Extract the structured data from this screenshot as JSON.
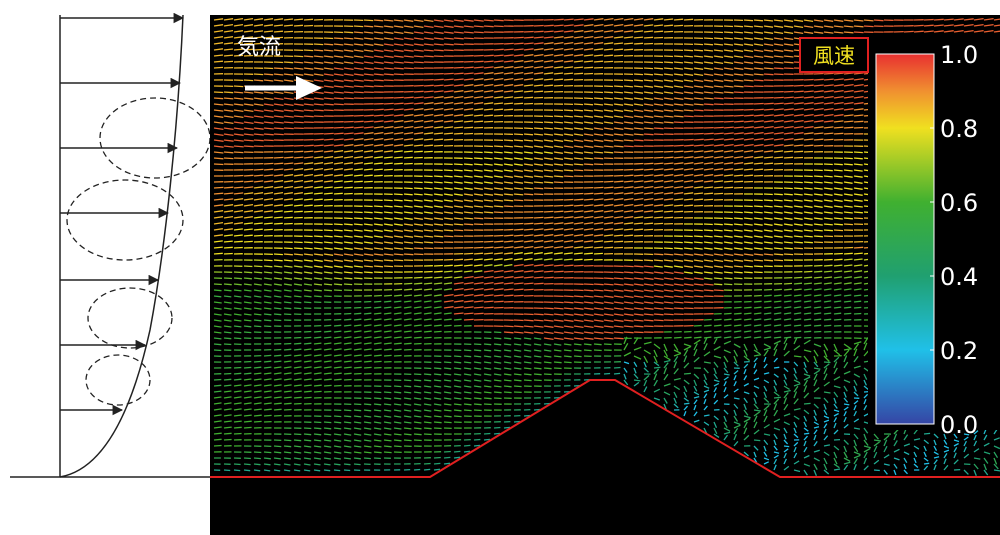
{
  "flow_label": "気流",
  "colorbar": {
    "title": "風速",
    "ticks": [
      {
        "value": 1,
        "label": "1.0"
      },
      {
        "value": 0.8,
        "label": "0.8"
      },
      {
        "value": 0.6,
        "label": "0.6"
      },
      {
        "value": 0.4,
        "label": "0.4"
      },
      {
        "value": 0.2,
        "label": "0.2"
      },
      {
        "value": 0,
        "label": "0.0"
      }
    ]
  }
}
